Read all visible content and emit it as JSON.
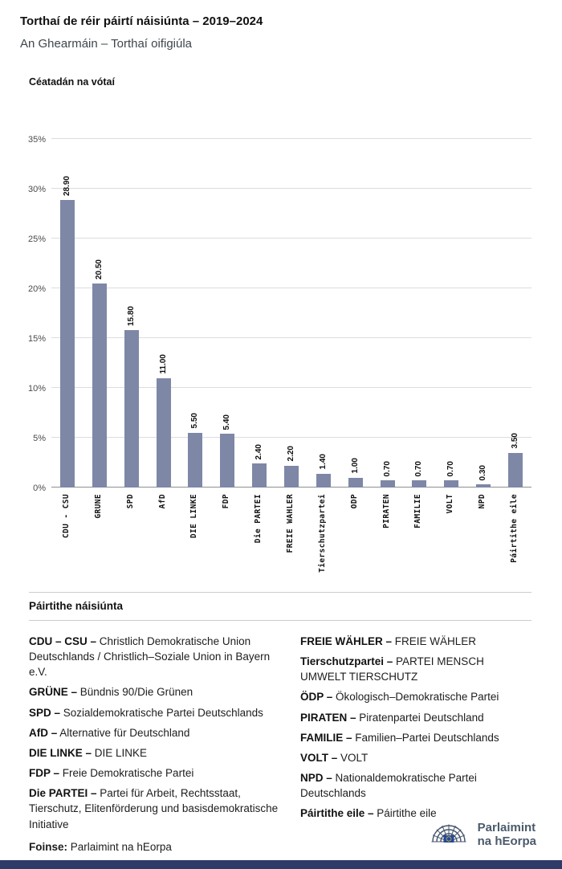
{
  "header": {
    "title": "Torthaí de réir páirtí náisiúnta – 2019–2024",
    "subtitle": "An Ghearmáin – Torthaí oifigiúla"
  },
  "chart_data": {
    "type": "bar",
    "title": "Torthaí de réir páirtí náisiúnta – 2019–2024",
    "subtitle": "An Ghearmáin – Torthaí oifigiúla",
    "ylabel": "Céatadán na vótaí",
    "xlabel": "",
    "categories": [
      "CDU - CSU",
      "GRÜNE",
      "SPD",
      "AfD",
      "DIE LINKE",
      "FDP",
      "Die PARTEI",
      "FREIE WÄHLER",
      "Tierschutzpartei",
      "ÖDP",
      "PIRATEN",
      "FAMILIE",
      "VOLT",
      "NPD",
      "Páirtithe eile"
    ],
    "values": [
      28.9,
      20.5,
      15.8,
      11.0,
      5.5,
      5.4,
      2.4,
      2.2,
      1.4,
      1.0,
      0.7,
      0.7,
      0.7,
      0.3,
      3.5
    ],
    "value_labels": [
      "28.90",
      "20.50",
      "15.80",
      "11.00",
      "5.50",
      "5.40",
      "2.40",
      "2.20",
      "1.40",
      "1.00",
      "0.70",
      "0.70",
      "0.70",
      "0.30",
      "3.50"
    ],
    "ylim": [
      0,
      35
    ],
    "yticks": [
      "0%",
      "5%",
      "10%",
      "15%",
      "20%",
      "25%",
      "30%",
      "35%"
    ],
    "grid": true,
    "bar_color": "#7e87a6"
  },
  "legend": {
    "heading": "Páirtithe náisiúnta",
    "left_column": [
      {
        "name": "CDU – CSU –",
        "desc": "Christlich Demokratische Union Deutschlands / Christlich–Soziale Union in Bayern e.V."
      },
      {
        "name": "GRÜNE –",
        "desc": "Bündnis 90/Die Grünen"
      },
      {
        "name": "SPD –",
        "desc": "Sozialdemokratische Partei Deutschlands"
      },
      {
        "name": "AfD –",
        "desc": "Alternative für Deutschland"
      },
      {
        "name": "DIE LINKE –",
        "desc": "DIE LINKE"
      },
      {
        "name": "FDP –",
        "desc": "Freie Demokratische Partei"
      },
      {
        "name": "Die PARTEI –",
        "desc": "Partei für Arbeit, Rechtsstaat, Tierschutz, Elitenförderung und basisdemokratische Initiative"
      }
    ],
    "right_column": [
      {
        "name": "FREIE WÄHLER –",
        "desc": "FREIE WÄHLER"
      },
      {
        "name": "Tierschutzpartei –",
        "desc": "PARTEI MENSCH UMWELT TIERSCHUTZ"
      },
      {
        "name": "ÖDP –",
        "desc": "Ökologisch–Demokratische Partei"
      },
      {
        "name": "PIRATEN –",
        "desc": "Piratenpartei Deutschland"
      },
      {
        "name": "FAMILIE –",
        "desc": "Familien–Partei Deutschlands"
      },
      {
        "name": "VOLT –",
        "desc": "VOLT"
      },
      {
        "name": "NPD –",
        "desc": "Nationaldemokratische Partei Deutschlands"
      },
      {
        "name": "Páirtithe eile –",
        "desc": "Páirtithe eile"
      }
    ]
  },
  "footer": {
    "source_label": "Foinse:",
    "source_value": "Parlaimint na hEorpa",
    "logo_text_line1": "Parlaimint",
    "logo_text_line2": "na hEorpa"
  }
}
